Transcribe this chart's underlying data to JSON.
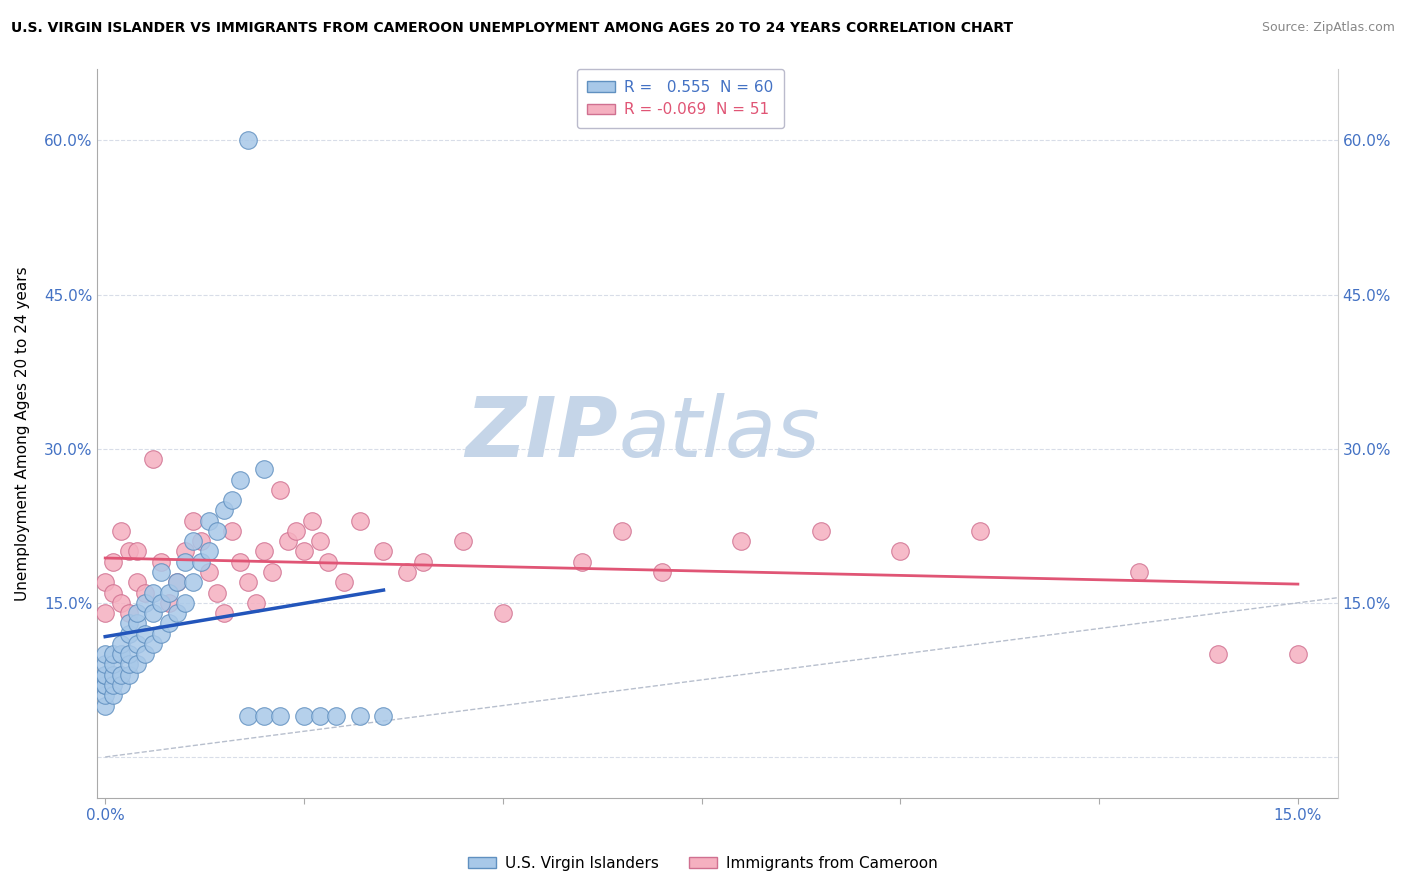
{
  "title": "U.S. VIRGIN ISLANDER VS IMMIGRANTS FROM CAMEROON UNEMPLOYMENT AMONG AGES 20 TO 24 YEARS CORRELATION CHART",
  "source": "Source: ZipAtlas.com",
  "ylabel": "Unemployment Among Ages 20 to 24 years",
  "xlim": [
    -0.001,
    0.155
  ],
  "ylim": [
    -0.04,
    0.67
  ],
  "ytick_vals": [
    0.0,
    0.15,
    0.3,
    0.45,
    0.6
  ],
  "ytick_labels": [
    "",
    "15.0%",
    "30.0%",
    "45.0%",
    "60.0%"
  ],
  "xtick_vals": [
    0.0,
    0.025,
    0.05,
    0.075,
    0.1,
    0.125,
    0.15
  ],
  "xtick_labels": [
    "0.0%",
    "",
    "",
    "",
    "",
    "",
    "15.0%"
  ],
  "R_blue": 0.555,
  "N_blue": 60,
  "R_pink": -0.069,
  "N_pink": 51,
  "blue_dot_color": "#a8c8e8",
  "blue_dot_edge": "#6090c0",
  "pink_dot_color": "#f5b0c0",
  "pink_dot_edge": "#d07090",
  "blue_line_color": "#2255bb",
  "pink_line_color": "#e05575",
  "ref_line_color": "#b0b8c8",
  "grid_h_color": "#d8dde8",
  "watermark_zip": "ZIP",
  "watermark_atlas": "atlas",
  "watermark_color": "#c5d5e8",
  "legend_label_blue": "U.S. Virgin Islanders",
  "legend_label_pink": "Immigrants from Cameroon",
  "title_fontsize": 10,
  "source_fontsize": 9,
  "axis_label_fontsize": 11,
  "tick_fontsize": 11,
  "legend_fontsize": 11,
  "blue_scatter_x": [
    0.0,
    0.0,
    0.0,
    0.0,
    0.0,
    0.0,
    0.0,
    0.0,
    0.001,
    0.001,
    0.001,
    0.001,
    0.001,
    0.002,
    0.002,
    0.002,
    0.002,
    0.003,
    0.003,
    0.003,
    0.003,
    0.003,
    0.004,
    0.004,
    0.004,
    0.004,
    0.005,
    0.005,
    0.005,
    0.006,
    0.006,
    0.006,
    0.007,
    0.007,
    0.007,
    0.008,
    0.008,
    0.009,
    0.009,
    0.01,
    0.01,
    0.011,
    0.011,
    0.012,
    0.013,
    0.013,
    0.014,
    0.015,
    0.016,
    0.017,
    0.018,
    0.02,
    0.022,
    0.025,
    0.027,
    0.029,
    0.032,
    0.035,
    0.018,
    0.02
  ],
  "blue_scatter_y": [
    0.05,
    0.06,
    0.07,
    0.07,
    0.08,
    0.08,
    0.09,
    0.1,
    0.06,
    0.07,
    0.08,
    0.09,
    0.1,
    0.07,
    0.08,
    0.1,
    0.11,
    0.08,
    0.09,
    0.1,
    0.12,
    0.13,
    0.09,
    0.11,
    0.13,
    0.14,
    0.1,
    0.12,
    0.15,
    0.11,
    0.14,
    0.16,
    0.12,
    0.15,
    0.18,
    0.13,
    0.16,
    0.14,
    0.17,
    0.15,
    0.19,
    0.17,
    0.21,
    0.19,
    0.2,
    0.23,
    0.22,
    0.24,
    0.25,
    0.27,
    0.04,
    0.04,
    0.04,
    0.04,
    0.04,
    0.04,
    0.04,
    0.04,
    0.6,
    0.28
  ],
  "pink_scatter_x": [
    0.0,
    0.0,
    0.001,
    0.001,
    0.002,
    0.002,
    0.003,
    0.003,
    0.004,
    0.004,
    0.005,
    0.006,
    0.007,
    0.008,
    0.009,
    0.01,
    0.011,
    0.012,
    0.013,
    0.014,
    0.015,
    0.016,
    0.017,
    0.018,
    0.019,
    0.02,
    0.021,
    0.022,
    0.023,
    0.024,
    0.025,
    0.026,
    0.027,
    0.028,
    0.03,
    0.032,
    0.035,
    0.038,
    0.04,
    0.045,
    0.05,
    0.06,
    0.065,
    0.07,
    0.08,
    0.09,
    0.1,
    0.11,
    0.13,
    0.14,
    0.15
  ],
  "pink_scatter_y": [
    0.14,
    0.17,
    0.16,
    0.19,
    0.22,
    0.15,
    0.2,
    0.14,
    0.17,
    0.2,
    0.16,
    0.29,
    0.19,
    0.15,
    0.17,
    0.2,
    0.23,
    0.21,
    0.18,
    0.16,
    0.14,
    0.22,
    0.19,
    0.17,
    0.15,
    0.2,
    0.18,
    0.26,
    0.21,
    0.22,
    0.2,
    0.23,
    0.21,
    0.19,
    0.17,
    0.23,
    0.2,
    0.18,
    0.19,
    0.21,
    0.14,
    0.19,
    0.22,
    0.18,
    0.21,
    0.22,
    0.2,
    0.22,
    0.18,
    0.1,
    0.1
  ]
}
